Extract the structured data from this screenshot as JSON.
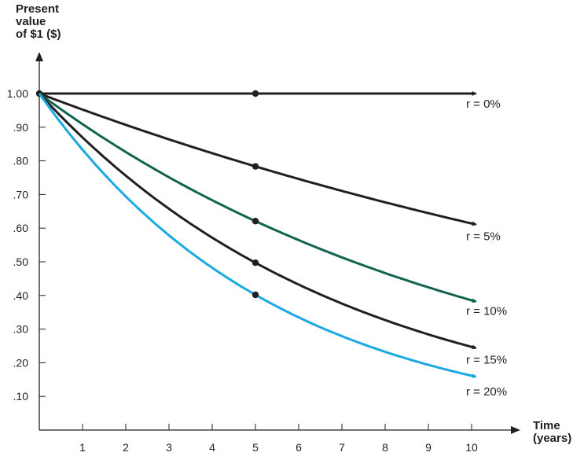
{
  "chart_data": {
    "type": "line",
    "ylabel": "Present\nvalue\nof $1 ($)",
    "xlabel": "Time\n(years)",
    "x_ticks": [
      "1",
      "2",
      "3",
      "4",
      "5",
      "6",
      "7",
      "8",
      "9",
      "10"
    ],
    "y_ticks": [
      "1.00",
      ".90",
      ".80",
      ".70",
      ".60",
      ".50",
      ".40",
      ".30",
      ".20",
      ".10"
    ],
    "xlim": [
      0,
      10.55
    ],
    "ylim": [
      0,
      1.08
    ],
    "series": [
      {
        "name": "r = 0%",
        "rate": 0.0,
        "color": "#231f20",
        "x": [
          0,
          1,
          2,
          3,
          4,
          5,
          6,
          7,
          8,
          9,
          10
        ],
        "y": [
          1.0,
          1.0,
          1.0,
          1.0,
          1.0,
          1.0,
          1.0,
          1.0,
          1.0,
          1.0,
          1.0
        ],
        "marker_x": [
          0,
          5
        ]
      },
      {
        "name": "r = 5%",
        "rate": 0.05,
        "color": "#231f20",
        "x": [
          0,
          1,
          2,
          3,
          4,
          5,
          6,
          7,
          8,
          9,
          10
        ],
        "y": [
          1.0,
          0.952,
          0.907,
          0.864,
          0.823,
          0.784,
          0.746,
          0.711,
          0.677,
          0.645,
          0.614
        ],
        "marker_x": [
          5
        ]
      },
      {
        "name": "r = 10%",
        "rate": 0.1,
        "color": "#12634f",
        "x": [
          0,
          1,
          2,
          3,
          4,
          5,
          6,
          7,
          8,
          9,
          10
        ],
        "y": [
          1.0,
          0.909,
          0.826,
          0.751,
          0.683,
          0.621,
          0.564,
          0.513,
          0.467,
          0.424,
          0.386
        ],
        "marker_x": [
          5
        ]
      },
      {
        "name": "r = 15%",
        "rate": 0.15,
        "color": "#231f20",
        "x": [
          0,
          1,
          2,
          3,
          4,
          5,
          6,
          7,
          8,
          9,
          10
        ],
        "y": [
          1.0,
          0.87,
          0.756,
          0.658,
          0.572,
          0.497,
          0.432,
          0.376,
          0.327,
          0.284,
          0.247
        ],
        "marker_x": [
          5
        ]
      },
      {
        "name": "r = 20%",
        "rate": 0.2,
        "color": "#1ba9e1",
        "x": [
          0,
          1,
          2,
          3,
          4,
          5,
          6,
          7,
          8,
          9,
          10
        ],
        "y": [
          1.0,
          0.833,
          0.694,
          0.579,
          0.482,
          0.402,
          0.335,
          0.279,
          0.233,
          0.194,
          0.162
        ],
        "marker_x": [
          5
        ]
      }
    ],
    "grid": false,
    "legend": "inline-at-line-ends"
  }
}
